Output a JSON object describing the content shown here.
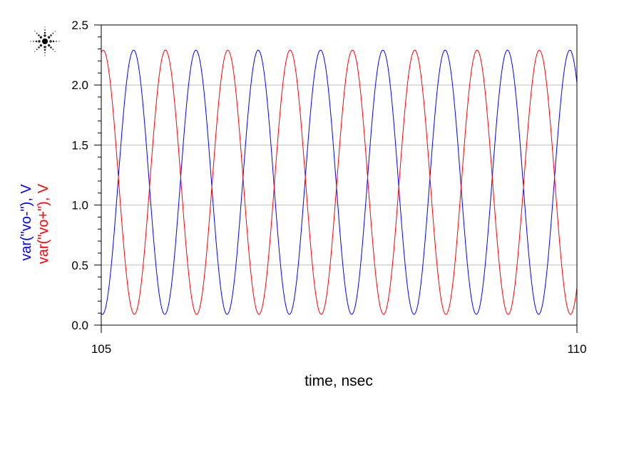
{
  "chart_data": {
    "type": "line",
    "title": "",
    "xlabel": "time, nsec",
    "ylabel_lines": [
      {
        "text": "var(\"vo-\"), V",
        "color": "#0000ff"
      },
      {
        "text": "var(\"vo+\"), V",
        "color": "#ff0000"
      }
    ],
    "xlim": [
      105,
      110
    ],
    "ylim": [
      0.0,
      2.5
    ],
    "x_ticks": [
      "105",
      "110"
    ],
    "y_ticks": [
      "0.0",
      "0.5",
      "1.0",
      "1.5",
      "2.0",
      "2.5"
    ],
    "grid": "horizontal",
    "series": [
      {
        "name": "var(\"vo-\"), V",
        "color": "#0000ff",
        "waveform": {
          "min": 0.09,
          "max": 2.29,
          "period_ns": 0.655,
          "first_peak_ns": 105.34
        }
      },
      {
        "name": "var(\"vo+\"), V",
        "color": "#ff0000",
        "waveform": {
          "min": 0.09,
          "max": 2.29,
          "period_ns": 0.655,
          "first_peak_ns": 105.02
        }
      }
    ]
  },
  "logo": {
    "name": "agilent-spark-icon"
  }
}
